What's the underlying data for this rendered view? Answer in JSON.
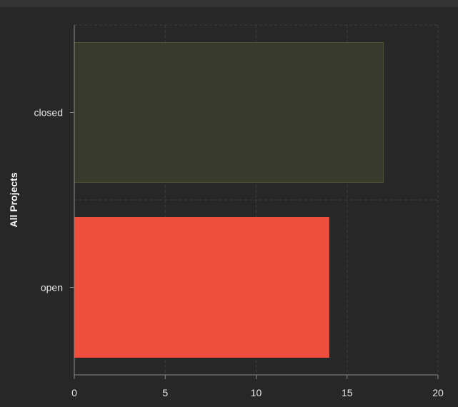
{
  "chart_data": {
    "type": "bar",
    "orientation": "horizontal",
    "title": "",
    "xlabel": "",
    "ylabel": "All Projects",
    "categories": [
      "closed",
      "open"
    ],
    "values": [
      17,
      14
    ],
    "bar_colors": [
      "#383b2c",
      "#ef4e3d"
    ],
    "bar_edge_colors": [
      "#4b5036",
      "#ef4e3d"
    ],
    "xlim": [
      0,
      20
    ],
    "xticks": [
      "0",
      "5",
      "10",
      "15",
      "20"
    ],
    "grid": true,
    "legend": "none"
  },
  "colors": {
    "background": "#272727",
    "grid": "#3c3c3c",
    "axis": "#8a8a8a",
    "text": "#e8e8e8"
  }
}
